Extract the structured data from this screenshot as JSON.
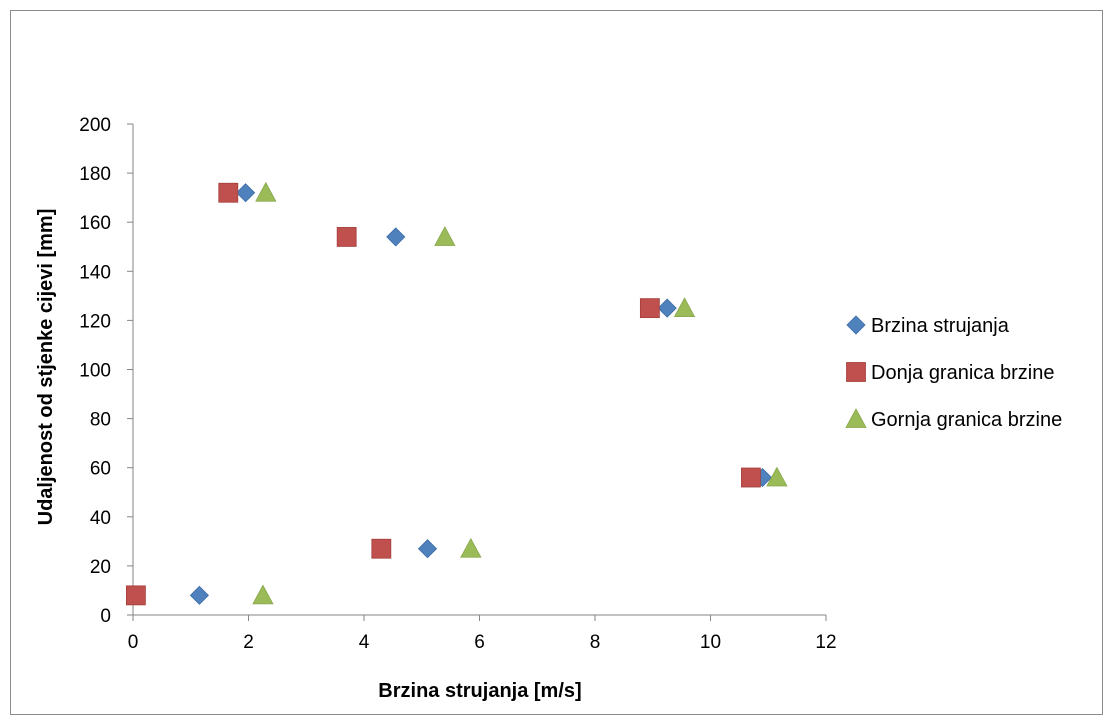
{
  "chart_data": {
    "type": "scatter",
    "title": "",
    "xlabel": "Brzina strujanja [m/s]",
    "ylabel": "Udaljenost od stjenke cijevi [mm]",
    "xlim": [
      0,
      12
    ],
    "ylim": [
      0,
      200
    ],
    "x_ticks": [
      0,
      2,
      4,
      6,
      8,
      10,
      12
    ],
    "y_ticks": [
      0,
      20,
      40,
      60,
      80,
      100,
      120,
      140,
      160,
      180,
      200
    ],
    "grid": false,
    "legend_position": "right",
    "series": [
      {
        "name": "Brzina strujanja",
        "marker": "diamond",
        "color": "#4f81bd",
        "points": [
          [
            1.15,
            8
          ],
          [
            5.1,
            27
          ],
          [
            9.25,
            125
          ],
          [
            10.9,
            56
          ],
          [
            4.55,
            154
          ],
          [
            1.95,
            172
          ]
        ]
      },
      {
        "name": "Donja granica brzine",
        "marker": "square",
        "color": "#c0504d",
        "points": [
          [
            0.05,
            8
          ],
          [
            4.3,
            27
          ],
          [
            8.95,
            125
          ],
          [
            10.7,
            56
          ],
          [
            3.7,
            154
          ],
          [
            1.65,
            172
          ]
        ]
      },
      {
        "name": "Gornja granica brzine",
        "marker": "triangle",
        "color": "#9bbb59",
        "points": [
          [
            2.25,
            8
          ],
          [
            5.85,
            27
          ],
          [
            9.55,
            125
          ],
          [
            11.15,
            56
          ],
          [
            5.4,
            154
          ],
          [
            2.3,
            172
          ]
        ]
      }
    ]
  }
}
